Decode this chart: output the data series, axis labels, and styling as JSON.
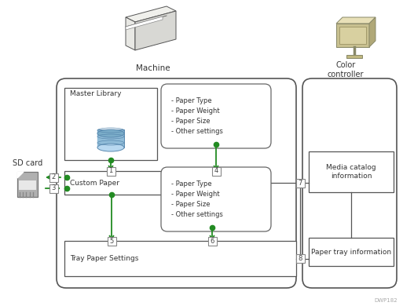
{
  "bg_color": "#ffffff",
  "watermark": "DWP182",
  "labels": {
    "machine": "Machine",
    "color_controller": "Color\ncontroller",
    "sd_card": "SD card",
    "master_library": "Master Library",
    "custom_paper": "Custom Paper",
    "tray_paper_settings": "Tray Paper Settings",
    "media_catalog": "Media catalog\ninformation",
    "paper_tray": "Paper tray information",
    "bubble1": "- Paper Type\n- Paper Weight\n- Paper Size\n- Other settings",
    "bubble2": "- Paper Type\n- Paper Weight\n- Paper Size\n- Other settings"
  },
  "arrow_color": "#228B22",
  "line_color": "#555555",
  "text_color": "#333333",
  "db_color": "#90bcd8",
  "db_edge": "#5a8ab0",
  "sd_fill": "#b0b0b0",
  "sd_edge": "#777777"
}
